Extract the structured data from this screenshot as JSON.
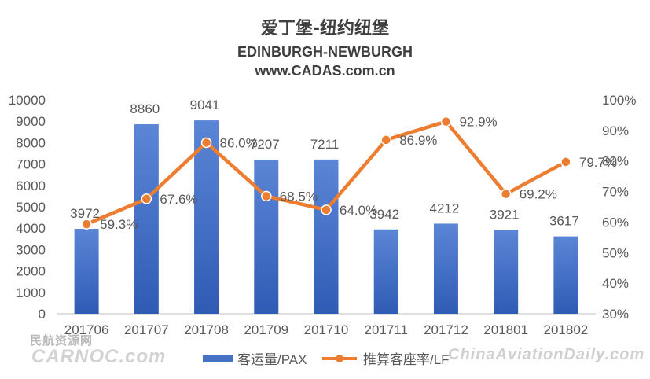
{
  "header": {
    "title_cn": "爱丁堡-纽约纽堡",
    "title_en": "EDINBURGH-NEWBURGH",
    "website": "www.CADAS.com.cn"
  },
  "watermarks": {
    "left_top": "民航资源网",
    "left_bottom": "CARNOC.com",
    "right": "ChinaAviationDaily.com"
  },
  "chart_data": {
    "type": "bar",
    "categories": [
      "201706",
      "201707",
      "201708",
      "201709",
      "201710",
      "201711",
      "201712",
      "201801",
      "201802"
    ],
    "series": [
      {
        "name": "客运量/PAX",
        "type": "bar",
        "axis": "left",
        "values": [
          3972,
          8860,
          9041,
          7207,
          7211,
          3942,
          4212,
          3921,
          3617
        ],
        "labels": [
          "3972",
          "8860",
          "9041",
          "7207",
          "7211",
          "3942",
          "4212",
          "3921",
          "3617"
        ],
        "color": "#4472C4"
      },
      {
        "name": "推算客座率/LF",
        "type": "line",
        "axis": "right",
        "values": [
          59.3,
          67.6,
          86.0,
          68.5,
          64.0,
          86.9,
          92.9,
          69.2,
          79.7
        ],
        "labels": [
          "59.3%",
          "67.6%",
          "86.0%",
          "68.5%",
          "64.0%",
          "86.9%",
          "92.9%",
          "69.2%",
          "79.7%"
        ],
        "color": "#ED7D31"
      }
    ],
    "y_left": {
      "min": 0,
      "max": 10000,
      "ticks": [
        "0",
        "1000",
        "2000",
        "3000",
        "4000",
        "5000",
        "6000",
        "7000",
        "8000",
        "9000",
        "10000"
      ]
    },
    "y_right": {
      "min": 30,
      "max": 100,
      "ticks": [
        "30%",
        "40%",
        "50%",
        "60%",
        "70%",
        "80%",
        "90%",
        "100%"
      ]
    },
    "grid": false,
    "legend_position": "bottom"
  }
}
